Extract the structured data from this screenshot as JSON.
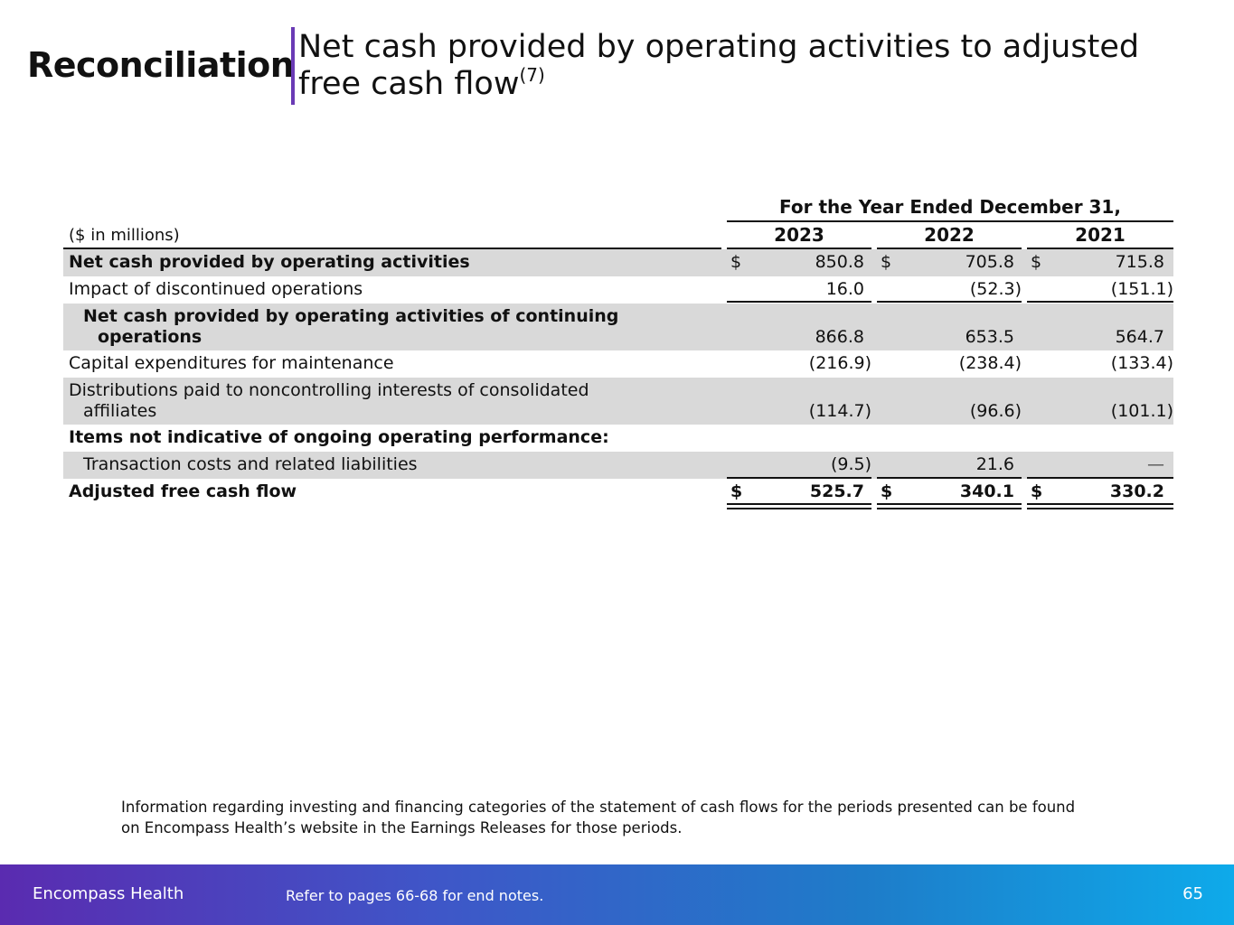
{
  "header": {
    "title": "Reconciliation",
    "subtitle": "Net cash provided by operating activities to adjusted free cash flow",
    "subtitle_note": "(7)",
    "accent_color": "#6a3bb5"
  },
  "table": {
    "period_header": "For the Year Ended December 31,",
    "units": "($ in millions)",
    "years": [
      "2023",
      "2022",
      "2021"
    ],
    "currency_symbol": "$",
    "rows": [
      {
        "line1": "Net cash provided by operating activities",
        "values": [
          "850.8",
          "705.8",
          "715.8"
        ]
      },
      {
        "line1": "Impact of discontinued operations",
        "values": [
          "16.0",
          "(52.3)",
          "(151.1)"
        ]
      },
      {
        "line1": "Net cash provided by operating activities of continuing",
        "line2": "operations",
        "values": [
          "866.8",
          "653.5",
          "564.7"
        ]
      },
      {
        "line1": "Capital expenditures for maintenance",
        "values": [
          "(216.9)",
          "(238.4)",
          "(133.4)"
        ]
      },
      {
        "line1": "Distributions paid to noncontrolling interests of consolidated",
        "line2": "affiliates",
        "values": [
          "(114.7)",
          "(96.6)",
          "(101.1)"
        ]
      },
      {
        "line1": "Items not indicative of ongoing operating performance:"
      },
      {
        "line1": "Transaction costs and related liabilities",
        "values": [
          "(9.5)",
          "21.6",
          "—"
        ]
      },
      {
        "line1": "Adjusted free cash flow",
        "values": [
          "525.7",
          "340.1",
          "330.2"
        ]
      }
    ]
  },
  "footnote": {
    "line1": "Information regarding investing and financing categories of the statement of cash flows for the periods presented can be found",
    "line2": "on Encompass Health’s website in the Earnings Releases for those periods."
  },
  "footer": {
    "brand": "Encompass Health",
    "note": "Refer to pages 66-68 for end notes.",
    "page_number": "65"
  }
}
